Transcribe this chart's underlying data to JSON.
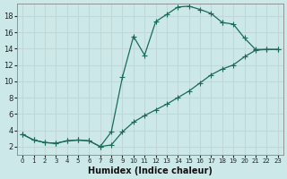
{
  "title": "",
  "xlabel": "Humidex (Indice chaleur)",
  "background_color": "#cce8e8",
  "grid_color": "#aacccc",
  "line_color": "#1a6b5a",
  "xlim": [
    -0.5,
    23.5
  ],
  "ylim": [
    1,
    19.5
  ],
  "xticks": [
    0,
    1,
    2,
    3,
    4,
    5,
    6,
    7,
    8,
    9,
    10,
    11,
    12,
    13,
    14,
    15,
    16,
    17,
    18,
    19,
    20,
    21,
    22,
    23
  ],
  "yticks": [
    2,
    4,
    6,
    8,
    10,
    12,
    14,
    16,
    18
  ],
  "line1_x": [
    0,
    1,
    2,
    3,
    4,
    5,
    6,
    7,
    8,
    9,
    10,
    11,
    12,
    13,
    14,
    15,
    16,
    17,
    18
  ],
  "line1_y": [
    3.5,
    2.8,
    2.5,
    2.4,
    2.7,
    2.8,
    2.7,
    2.0,
    3.8,
    10.5,
    15.5,
    13.2,
    17.3,
    18.2,
    19.1,
    19.2,
    18.8,
    18.3,
    17.2
  ],
  "line2_x": [
    0,
    1,
    2,
    3,
    4,
    5,
    6,
    7,
    8,
    9,
    10,
    11,
    12,
    13,
    14,
    15,
    16,
    17,
    18,
    19,
    20,
    21,
    22,
    23
  ],
  "line2_y": [
    3.5,
    2.8,
    2.5,
    2.4,
    2.7,
    2.8,
    2.7,
    2.0,
    2.2,
    3.8,
    5.0,
    5.8,
    6.5,
    7.2,
    8.0,
    8.8,
    9.8,
    10.8,
    11.5,
    12.0,
    13.0,
    13.8,
    13.9,
    13.9
  ],
  "line3_x": [
    18,
    19,
    20,
    21,
    22,
    23
  ],
  "line3_y": [
    17.2,
    17.0,
    15.3,
    13.9,
    13.9,
    13.9
  ]
}
